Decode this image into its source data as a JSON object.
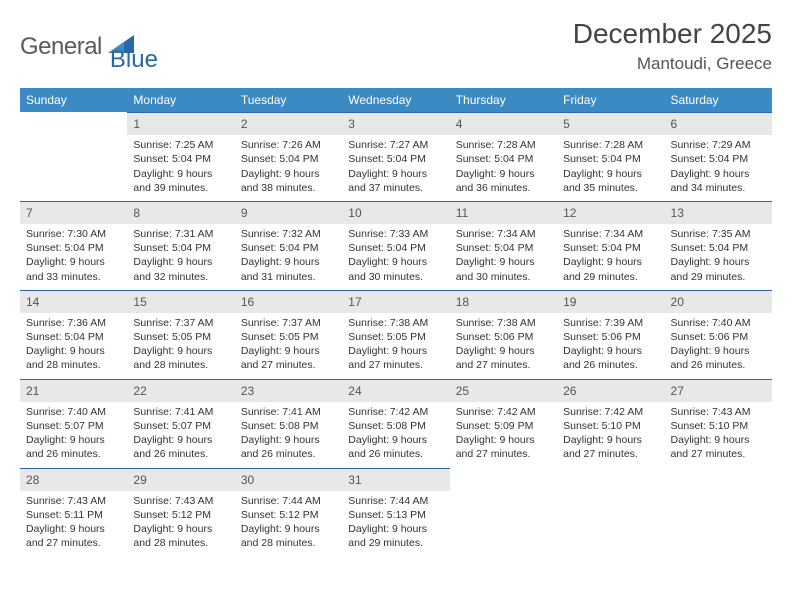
{
  "logo": {
    "text1": "General",
    "text2": "Blue"
  },
  "title": "December 2025",
  "location": "Mantoudi, Greece",
  "weekdays": [
    "Sunday",
    "Monday",
    "Tuesday",
    "Wednesday",
    "Thursday",
    "Friday",
    "Saturday"
  ],
  "colors": {
    "header_bg": "#3b8ac4",
    "border": "#2968a8",
    "daybar": "#e8e8e8",
    "text": "#333333",
    "title": "#444444"
  },
  "daylabel_prefix_sunrise": "Sunrise: ",
  "daylabel_prefix_sunset": "Sunset: ",
  "daylabel_prefix_daylight": "Daylight: ",
  "weeks": [
    [
      {
        "n": "",
        "sr": "",
        "ss": "",
        "dl": "",
        "empty": true
      },
      {
        "n": "1",
        "sr": "7:25 AM",
        "ss": "5:04 PM",
        "dl": "9 hours and 39 minutes."
      },
      {
        "n": "2",
        "sr": "7:26 AM",
        "ss": "5:04 PM",
        "dl": "9 hours and 38 minutes."
      },
      {
        "n": "3",
        "sr": "7:27 AM",
        "ss": "5:04 PM",
        "dl": "9 hours and 37 minutes."
      },
      {
        "n": "4",
        "sr": "7:28 AM",
        "ss": "5:04 PM",
        "dl": "9 hours and 36 minutes."
      },
      {
        "n": "5",
        "sr": "7:28 AM",
        "ss": "5:04 PM",
        "dl": "9 hours and 35 minutes."
      },
      {
        "n": "6",
        "sr": "7:29 AM",
        "ss": "5:04 PM",
        "dl": "9 hours and 34 minutes."
      }
    ],
    [
      {
        "n": "7",
        "sr": "7:30 AM",
        "ss": "5:04 PM",
        "dl": "9 hours and 33 minutes."
      },
      {
        "n": "8",
        "sr": "7:31 AM",
        "ss": "5:04 PM",
        "dl": "9 hours and 32 minutes."
      },
      {
        "n": "9",
        "sr": "7:32 AM",
        "ss": "5:04 PM",
        "dl": "9 hours and 31 minutes."
      },
      {
        "n": "10",
        "sr": "7:33 AM",
        "ss": "5:04 PM",
        "dl": "9 hours and 30 minutes."
      },
      {
        "n": "11",
        "sr": "7:34 AM",
        "ss": "5:04 PM",
        "dl": "9 hours and 30 minutes."
      },
      {
        "n": "12",
        "sr": "7:34 AM",
        "ss": "5:04 PM",
        "dl": "9 hours and 29 minutes."
      },
      {
        "n": "13",
        "sr": "7:35 AM",
        "ss": "5:04 PM",
        "dl": "9 hours and 29 minutes."
      }
    ],
    [
      {
        "n": "14",
        "sr": "7:36 AM",
        "ss": "5:04 PM",
        "dl": "9 hours and 28 minutes."
      },
      {
        "n": "15",
        "sr": "7:37 AM",
        "ss": "5:05 PM",
        "dl": "9 hours and 28 minutes."
      },
      {
        "n": "16",
        "sr": "7:37 AM",
        "ss": "5:05 PM",
        "dl": "9 hours and 27 minutes."
      },
      {
        "n": "17",
        "sr": "7:38 AM",
        "ss": "5:05 PM",
        "dl": "9 hours and 27 minutes."
      },
      {
        "n": "18",
        "sr": "7:38 AM",
        "ss": "5:06 PM",
        "dl": "9 hours and 27 minutes."
      },
      {
        "n": "19",
        "sr": "7:39 AM",
        "ss": "5:06 PM",
        "dl": "9 hours and 26 minutes."
      },
      {
        "n": "20",
        "sr": "7:40 AM",
        "ss": "5:06 PM",
        "dl": "9 hours and 26 minutes."
      }
    ],
    [
      {
        "n": "21",
        "sr": "7:40 AM",
        "ss": "5:07 PM",
        "dl": "9 hours and 26 minutes."
      },
      {
        "n": "22",
        "sr": "7:41 AM",
        "ss": "5:07 PM",
        "dl": "9 hours and 26 minutes."
      },
      {
        "n": "23",
        "sr": "7:41 AM",
        "ss": "5:08 PM",
        "dl": "9 hours and 26 minutes."
      },
      {
        "n": "24",
        "sr": "7:42 AM",
        "ss": "5:08 PM",
        "dl": "9 hours and 26 minutes."
      },
      {
        "n": "25",
        "sr": "7:42 AM",
        "ss": "5:09 PM",
        "dl": "9 hours and 27 minutes."
      },
      {
        "n": "26",
        "sr": "7:42 AM",
        "ss": "5:10 PM",
        "dl": "9 hours and 27 minutes."
      },
      {
        "n": "27",
        "sr": "7:43 AM",
        "ss": "5:10 PM",
        "dl": "9 hours and 27 minutes."
      }
    ],
    [
      {
        "n": "28",
        "sr": "7:43 AM",
        "ss": "5:11 PM",
        "dl": "9 hours and 27 minutes."
      },
      {
        "n": "29",
        "sr": "7:43 AM",
        "ss": "5:12 PM",
        "dl": "9 hours and 28 minutes."
      },
      {
        "n": "30",
        "sr": "7:44 AM",
        "ss": "5:12 PM",
        "dl": "9 hours and 28 minutes."
      },
      {
        "n": "31",
        "sr": "7:44 AM",
        "ss": "5:13 PM",
        "dl": "9 hours and 29 minutes."
      },
      {
        "n": "",
        "sr": "",
        "ss": "",
        "dl": "",
        "empty": true
      },
      {
        "n": "",
        "sr": "",
        "ss": "",
        "dl": "",
        "empty": true
      },
      {
        "n": "",
        "sr": "",
        "ss": "",
        "dl": "",
        "empty": true
      }
    ]
  ]
}
